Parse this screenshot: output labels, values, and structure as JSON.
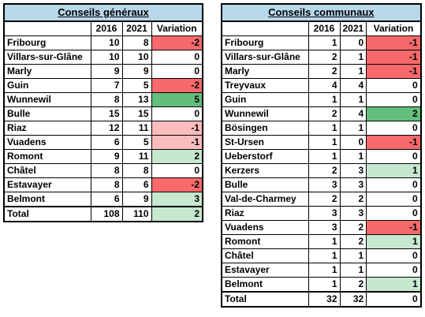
{
  "colors": {
    "title_bg": "#b8d8ea",
    "neg_strong": "#f8696b",
    "neg_light": "#fbbcbe",
    "pos_strong": "#63be7b",
    "pos_light": "#c6e8cf",
    "neutral": "#ffffff"
  },
  "generaux": {
    "title": "Conseils généraux",
    "headers": [
      "",
      "2016",
      "2021",
      "Variation"
    ],
    "rows": [
      {
        "name": "Fribourg",
        "y2016": "10",
        "y2021": "8",
        "variation": "-2",
        "tone": "neg_strong"
      },
      {
        "name": "Villars-sur-Glâne",
        "y2016": "10",
        "y2021": "10",
        "variation": "0",
        "tone": "neutral"
      },
      {
        "name": "Marly",
        "y2016": "9",
        "y2021": "9",
        "variation": "0",
        "tone": "neutral"
      },
      {
        "name": "Guin",
        "y2016": "7",
        "y2021": "5",
        "variation": "-2",
        "tone": "neg_strong"
      },
      {
        "name": "Wunnewil",
        "y2016": "8",
        "y2021": "13",
        "variation": "5",
        "tone": "pos_strong"
      },
      {
        "name": "Bulle",
        "y2016": "15",
        "y2021": "15",
        "variation": "0",
        "tone": "neutral"
      },
      {
        "name": "Riaz",
        "y2016": "12",
        "y2021": "11",
        "variation": "-1",
        "tone": "neg_light"
      },
      {
        "name": "Vuadens",
        "y2016": "6",
        "y2021": "5",
        "variation": "-1",
        "tone": "neg_light"
      },
      {
        "name": "Romont",
        "y2016": "9",
        "y2021": "11",
        "variation": "2",
        "tone": "pos_light"
      },
      {
        "name": "Châtel",
        "y2016": "8",
        "y2021": "8",
        "variation": "0",
        "tone": "neutral"
      },
      {
        "name": "Estavayer",
        "y2016": "8",
        "y2021": "6",
        "variation": "-2",
        "tone": "neg_strong"
      },
      {
        "name": "Belmont",
        "y2016": "6",
        "y2021": "9",
        "variation": "3",
        "tone": "pos_light"
      }
    ],
    "total": {
      "name": "Total",
      "y2016": "108",
      "y2021": "110",
      "variation": "2",
      "tone": "pos_light"
    }
  },
  "communaux": {
    "title": "Conseils communaux",
    "headers": [
      "",
      "2016",
      "2021",
      "Variation"
    ],
    "rows": [
      {
        "name": "Fribourg",
        "y2016": "1",
        "y2021": "0",
        "variation": "-1",
        "tone": "neg_strong"
      },
      {
        "name": "Villars-sur-Glâne",
        "y2016": "2",
        "y2021": "1",
        "variation": "-1",
        "tone": "neg_strong"
      },
      {
        "name": "Marly",
        "y2016": "2",
        "y2021": "1",
        "variation": "-1",
        "tone": "neg_strong"
      },
      {
        "name": "Treyvaux",
        "y2016": "4",
        "y2021": "4",
        "variation": "0",
        "tone": "neutral"
      },
      {
        "name": "Guin",
        "y2016": "1",
        "y2021": "1",
        "variation": "0",
        "tone": "neutral"
      },
      {
        "name": "Wunnewil",
        "y2016": "2",
        "y2021": "4",
        "variation": "2",
        "tone": "pos_strong"
      },
      {
        "name": "Bösingen",
        "y2016": "1",
        "y2021": "1",
        "variation": "0",
        "tone": "neutral"
      },
      {
        "name": "St-Ursen",
        "y2016": "1",
        "y2021": "0",
        "variation": "-1",
        "tone": "neg_strong"
      },
      {
        "name": "Ueberstorf",
        "y2016": "1",
        "y2021": "1",
        "variation": "0",
        "tone": "neutral"
      },
      {
        "name": "Kerzers",
        "y2016": "2",
        "y2021": "3",
        "variation": "1",
        "tone": "pos_light"
      },
      {
        "name": "Bulle",
        "y2016": "3",
        "y2021": "3",
        "variation": "0",
        "tone": "neutral"
      },
      {
        "name": "Val-de-Charmey",
        "y2016": "2",
        "y2021": "2",
        "variation": "0",
        "tone": "neutral"
      },
      {
        "name": "Riaz",
        "y2016": "3",
        "y2021": "3",
        "variation": "0",
        "tone": "neutral"
      },
      {
        "name": "Vuadens",
        "y2016": "3",
        "y2021": "2",
        "variation": "-1",
        "tone": "neg_strong"
      },
      {
        "name": "Romont",
        "y2016": "1",
        "y2021": "2",
        "variation": "1",
        "tone": "pos_light"
      },
      {
        "name": "Châtel",
        "y2016": "1",
        "y2021": "1",
        "variation": "0",
        "tone": "neutral"
      },
      {
        "name": "Estavayer",
        "y2016": "1",
        "y2021": "1",
        "variation": "0",
        "tone": "neutral"
      },
      {
        "name": "Belmont",
        "y2016": "1",
        "y2021": "2",
        "variation": "1",
        "tone": "pos_light"
      }
    ],
    "total": {
      "name": "Total",
      "y2016": "32",
      "y2021": "32",
      "variation": "0",
      "tone": "neutral"
    }
  }
}
